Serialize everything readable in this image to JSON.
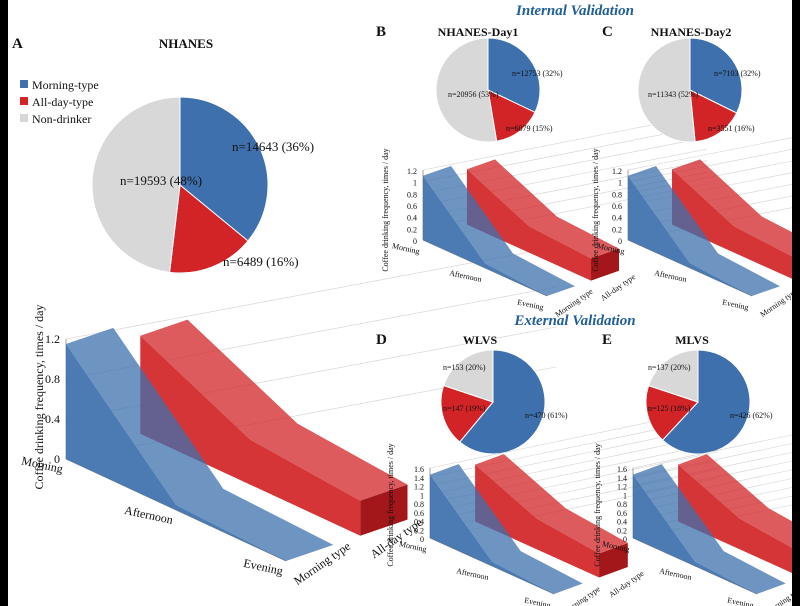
{
  "colors": {
    "morning": "#3d70ad",
    "all_day": "#d22427",
    "non_drinker": "#d8d8d8",
    "section_title": "#1f5e96",
    "text": "#111111"
  },
  "section_titles": {
    "internal": "Internal Validation",
    "external": "External Validation"
  },
  "legend": [
    "Morning-type",
    "All-day-type",
    "Non-drinker"
  ],
  "area_axis": {
    "ylabel": "Coffee drinking frequency, times / day",
    "x_categories": [
      "Morning",
      "Afternoon",
      "Evening"
    ],
    "depth_categories": [
      "Morning type",
      "All-day type"
    ]
  },
  "chart_data": [
    {
      "id": "A",
      "letter": "A",
      "title": "NHANES",
      "pie": {
        "type": "pie",
        "slices": [
          {
            "name": "Morning-type",
            "n": 14643,
            "pct": 36,
            "label": "n=14643 (36%)"
          },
          {
            "name": "All-day-type",
            "n": 6489,
            "pct": 16,
            "label": "n=6489 (16%)"
          },
          {
            "name": "Non-drinker",
            "n": 19593,
            "pct": 48,
            "label": "n=19593 (48%)"
          }
        ]
      },
      "area": {
        "type": "area",
        "ylim": [
          0,
          1.2
        ],
        "yticks": [
          "0",
          "0.4",
          "0.8",
          "1.2"
        ],
        "series": [
          {
            "name": "Morning type",
            "values": [
              1.15,
              0.05,
              0.0
            ]
          },
          {
            "name": "All-day type",
            "values": [
              0.98,
              0.45,
              0.35
            ]
          }
        ]
      }
    },
    {
      "id": "B",
      "letter": "B",
      "title": "NHANES-Day1",
      "pie": {
        "type": "pie",
        "slices": [
          {
            "name": "Morning-type",
            "n": 12753,
            "pct": 32,
            "label": "n=12753 (32%)"
          },
          {
            "name": "All-day-type",
            "n": 6079,
            "pct": 15,
            "label": "n=6079 (15%)"
          },
          {
            "name": "Non-drinker",
            "n": 20956,
            "pct": 53,
            "label": "n=20956 (53%)"
          }
        ]
      },
      "area": {
        "type": "area",
        "ylim": [
          0,
          1.2
        ],
        "yticks": [
          "0",
          "0.2",
          "0.4",
          "0.6",
          "0.8",
          "1",
          "1.2"
        ],
        "series": [
          {
            "name": "Morning type",
            "values": [
              1.1,
              0.08,
              0.0
            ]
          },
          {
            "name": "All-day type",
            "values": [
              0.95,
              0.45,
              0.38
            ]
          }
        ]
      }
    },
    {
      "id": "C",
      "letter": "C",
      "title": "NHANES-Day2",
      "pie": {
        "type": "pie",
        "slices": [
          {
            "name": "Morning-type",
            "n": 7103,
            "pct": 32,
            "label": "n=7103 (32%)"
          },
          {
            "name": "All-day-type",
            "n": 3551,
            "pct": 16,
            "label": "n=3551 (16%)"
          },
          {
            "name": "Non-drinker",
            "n": 11343,
            "pct": 52,
            "label": "n=11343 (52%)"
          }
        ]
      },
      "area": {
        "type": "area",
        "ylim": [
          0,
          1.2
        ],
        "yticks": [
          "0",
          "0.2",
          "0.4",
          "0.6",
          "0.8",
          "1",
          "1.2"
        ],
        "series": [
          {
            "name": "Morning type",
            "values": [
              1.1,
              0.08,
              0.0
            ]
          },
          {
            "name": "All-day type",
            "values": [
              0.95,
              0.45,
              0.38
            ]
          }
        ]
      }
    },
    {
      "id": "D",
      "letter": "D",
      "title": "WLVS",
      "pie": {
        "type": "pie",
        "slices": [
          {
            "name": "Morning-type",
            "n": 470,
            "pct": 61,
            "label": "n=470 (61%)"
          },
          {
            "name": "All-day-type",
            "n": 147,
            "pct": 19,
            "label": "n=147 (19%)"
          },
          {
            "name": "Non-drinker",
            "n": 153,
            "pct": 20,
            "label": "n=153 (20%)"
          }
        ]
      },
      "area": {
        "type": "area",
        "ylim": [
          0,
          1.6
        ],
        "yticks": [
          "0",
          "0.2",
          "0.4",
          "0.6",
          "0.8",
          "1",
          "1.2",
          "1.4",
          "1.6"
        ],
        "series": [
          {
            "name": "Morning type",
            "values": [
              1.45,
              0.1,
              0.0
            ]
          },
          {
            "name": "All-day type",
            "values": [
              1.3,
              0.7,
              0.55
            ]
          }
        ]
      }
    },
    {
      "id": "E",
      "letter": "E",
      "title": "MLVS",
      "pie": {
        "type": "pie",
        "slices": [
          {
            "name": "Morning-type",
            "n": 426,
            "pct": 62,
            "label": "n=426 (62%)"
          },
          {
            "name": "All-day-type",
            "n": 125,
            "pct": 18,
            "label": "n=125 (18%)"
          },
          {
            "name": "Non-drinker",
            "n": 137,
            "pct": 20,
            "label": "n=137 (20%)"
          }
        ]
      },
      "area": {
        "type": "area",
        "ylim": [
          0,
          1.6
        ],
        "yticks": [
          "0",
          "0.2",
          "0.4",
          "0.6",
          "0.8",
          "1",
          "1.2",
          "1.4",
          "1.6"
        ],
        "series": [
          {
            "name": "Morning type",
            "values": [
              1.45,
              0.1,
              0.0
            ]
          },
          {
            "name": "All-day type",
            "values": [
              1.3,
              0.7,
              0.55
            ]
          }
        ]
      }
    }
  ]
}
